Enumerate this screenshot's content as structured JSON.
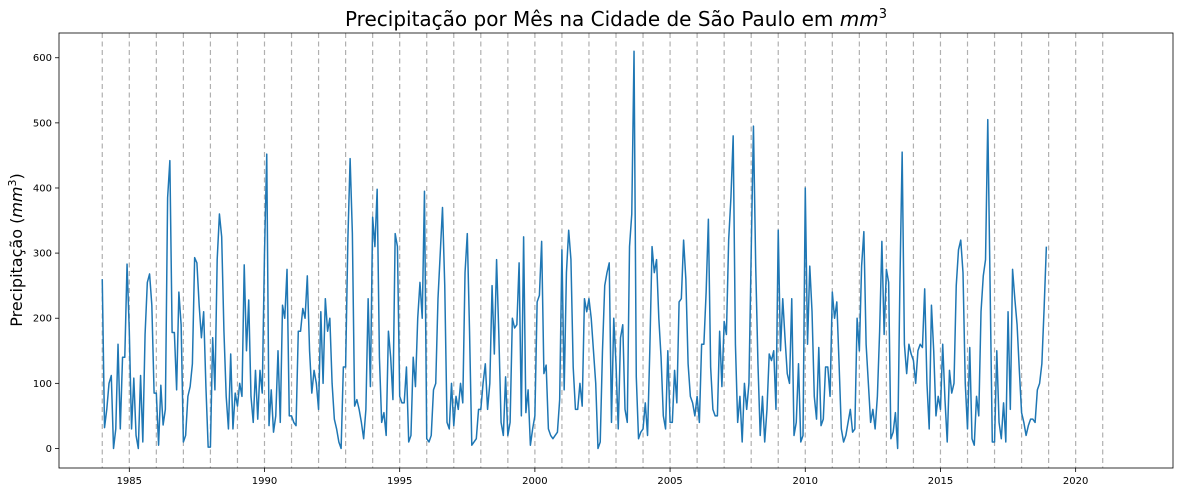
{
  "chart_data": {
    "type": "line",
    "title": "Precipitação por Mês na Cidade de São Paulo em mm³",
    "title_parts": [
      "Precipitação por Mês na Cidade de São Paulo em ",
      "mm",
      "3"
    ],
    "ylabel": "Precipitação (mm³)",
    "ylabel_parts": [
      "Precipitação (",
      "mm",
      "3",
      ")"
    ],
    "xlabel": "",
    "x_unit": "date",
    "x_start": "1984-01",
    "x_end": "2022-02",
    "xlim": [
      1982.4,
      2023.6
    ],
    "ylim": [
      -30,
      638
    ],
    "x_ticks": [
      1985,
      1990,
      1995,
      2000,
      2005,
      2010,
      2015,
      2020
    ],
    "x_tick_labels": [
      "1985",
      "1990",
      "1995",
      "2000",
      "2005",
      "2010",
      "2015",
      "2020"
    ],
    "y_ticks": [
      0,
      100,
      200,
      300,
      400,
      500,
      600
    ],
    "y_tick_labels": [
      "0",
      "100",
      "200",
      "300",
      "400",
      "500",
      "600"
    ],
    "vertical_lines": [
      1984,
      1985,
      1986,
      1987,
      1988,
      1989,
      1990,
      1991,
      1992,
      1993,
      1994,
      1995,
      1996,
      1997,
      1998,
      1999,
      2000,
      2001,
      2002,
      2003,
      2004,
      2005,
      2006,
      2007,
      2008,
      2009,
      2010,
      2011,
      2012,
      2013,
      2014,
      2015,
      2016,
      2017,
      2018,
      2019,
      2020,
      2021
    ],
    "vertical_line_style": "dashed",
    "grid": false,
    "legend": "none",
    "series": [
      {
        "color": "#1f77b4",
        "values": [
          260,
          32,
          60,
          100,
          112,
          0,
          30,
          160,
          30,
          140,
          140,
          283,
          180,
          30,
          108,
          20,
          0,
          112,
          10,
          175,
          255,
          268,
          220,
          85,
          85,
          5,
          97,
          36,
          60,
          385,
          442,
          178,
          178,
          90,
          240,
          190,
          10,
          20,
          80,
          95,
          130,
          293,
          285,
          220,
          170,
          210,
          95,
          2,
          2,
          170,
          90,
          290,
          360,
          325,
          180,
          80,
          30,
          145,
          30,
          85,
          65,
          100,
          80,
          282,
          150,
          228,
          80,
          40,
          120,
          45,
          120,
          85,
          300,
          452,
          35,
          90,
          25,
          50,
          150,
          40,
          220,
          200,
          275,
          50,
          50,
          40,
          35,
          180,
          180,
          215,
          200,
          265,
          150,
          85,
          120,
          100,
          60,
          210,
          100,
          230,
          180,
          200,
          100,
          45,
          30,
          10,
          0,
          125,
          125,
          320,
          445,
          330,
          65,
          75,
          60,
          40,
          15,
          60,
          230,
          95,
          355,
          310,
          398,
          140,
          40,
          55,
          20,
          180,
          140,
          75,
          330,
          310,
          80,
          70,
          70,
          125,
          10,
          20,
          140,
          95,
          200,
          255,
          200,
          395,
          15,
          10,
          20,
          90,
          100,
          230,
          300,
          370,
          250,
          40,
          30,
          100,
          35,
          80,
          60,
          100,
          70,
          270,
          330,
          180,
          5,
          10,
          15,
          60,
          60,
          100,
          130,
          60,
          100,
          250,
          145,
          290,
          175,
          40,
          20,
          110,
          20,
          40,
          200,
          185,
          190,
          285,
          50,
          325,
          55,
          90,
          5,
          30,
          50,
          225,
          235,
          318,
          115,
          128,
          30,
          20,
          15,
          20,
          25,
          75,
          305,
          90,
          270,
          335,
          290,
          125,
          60,
          60,
          100,
          65,
          230,
          210,
          230,
          200,
          150,
          100,
          0,
          10,
          150,
          250,
          270,
          285,
          40,
          200,
          130,
          30,
          170,
          190,
          60,
          40,
          310,
          360,
          610,
          110,
          15,
          25,
          30,
          70,
          20,
          150,
          310,
          270,
          290,
          200,
          140,
          50,
          30,
          150,
          40,
          40,
          120,
          70,
          225,
          230,
          320,
          260,
          130,
          80,
          70,
          50,
          80,
          40,
          160,
          160,
          240,
          352,
          125,
          60,
          50,
          50,
          180,
          95,
          195,
          175,
          320,
          385,
          480,
          160,
          40,
          80,
          10,
          100,
          60,
          100,
          300,
          495,
          280,
          130,
          20,
          80,
          10,
          60,
          145,
          135,
          150,
          60,
          335,
          150,
          230,
          170,
          115,
          100,
          230,
          20,
          40,
          130,
          10,
          20,
          400,
          160,
          280,
          210,
          80,
          45,
          155,
          35,
          45,
          125,
          125,
          80,
          240,
          200,
          225,
          130,
          30,
          10,
          20,
          40,
          60,
          25,
          30,
          200,
          150,
          280,
          333,
          160,
          100,
          40,
          60,
          30,
          80,
          180,
          318,
          175,
          275,
          255,
          15,
          25,
          55,
          0,
          255,
          455,
          160,
          115,
          160,
          145,
          135,
          100,
          150,
          160,
          155,
          245,
          100,
          30,
          220,
          150,
          50,
          80,
          60,
          160,
          75,
          10,
          120,
          85,
          100,
          250,
          305,
          320,
          270,
          100,
          30,
          155,
          15,
          5,
          80,
          50,
          210,
          265,
          290,
          505,
          255,
          10,
          10,
          150,
          40,
          15,
          70,
          10,
          210,
          60,
          275,
          230,
          190,
          120,
          55,
          40,
          20,
          35,
          45,
          45,
          40,
          90,
          100,
          130,
          215,
          310
        ]
      }
    ]
  }
}
